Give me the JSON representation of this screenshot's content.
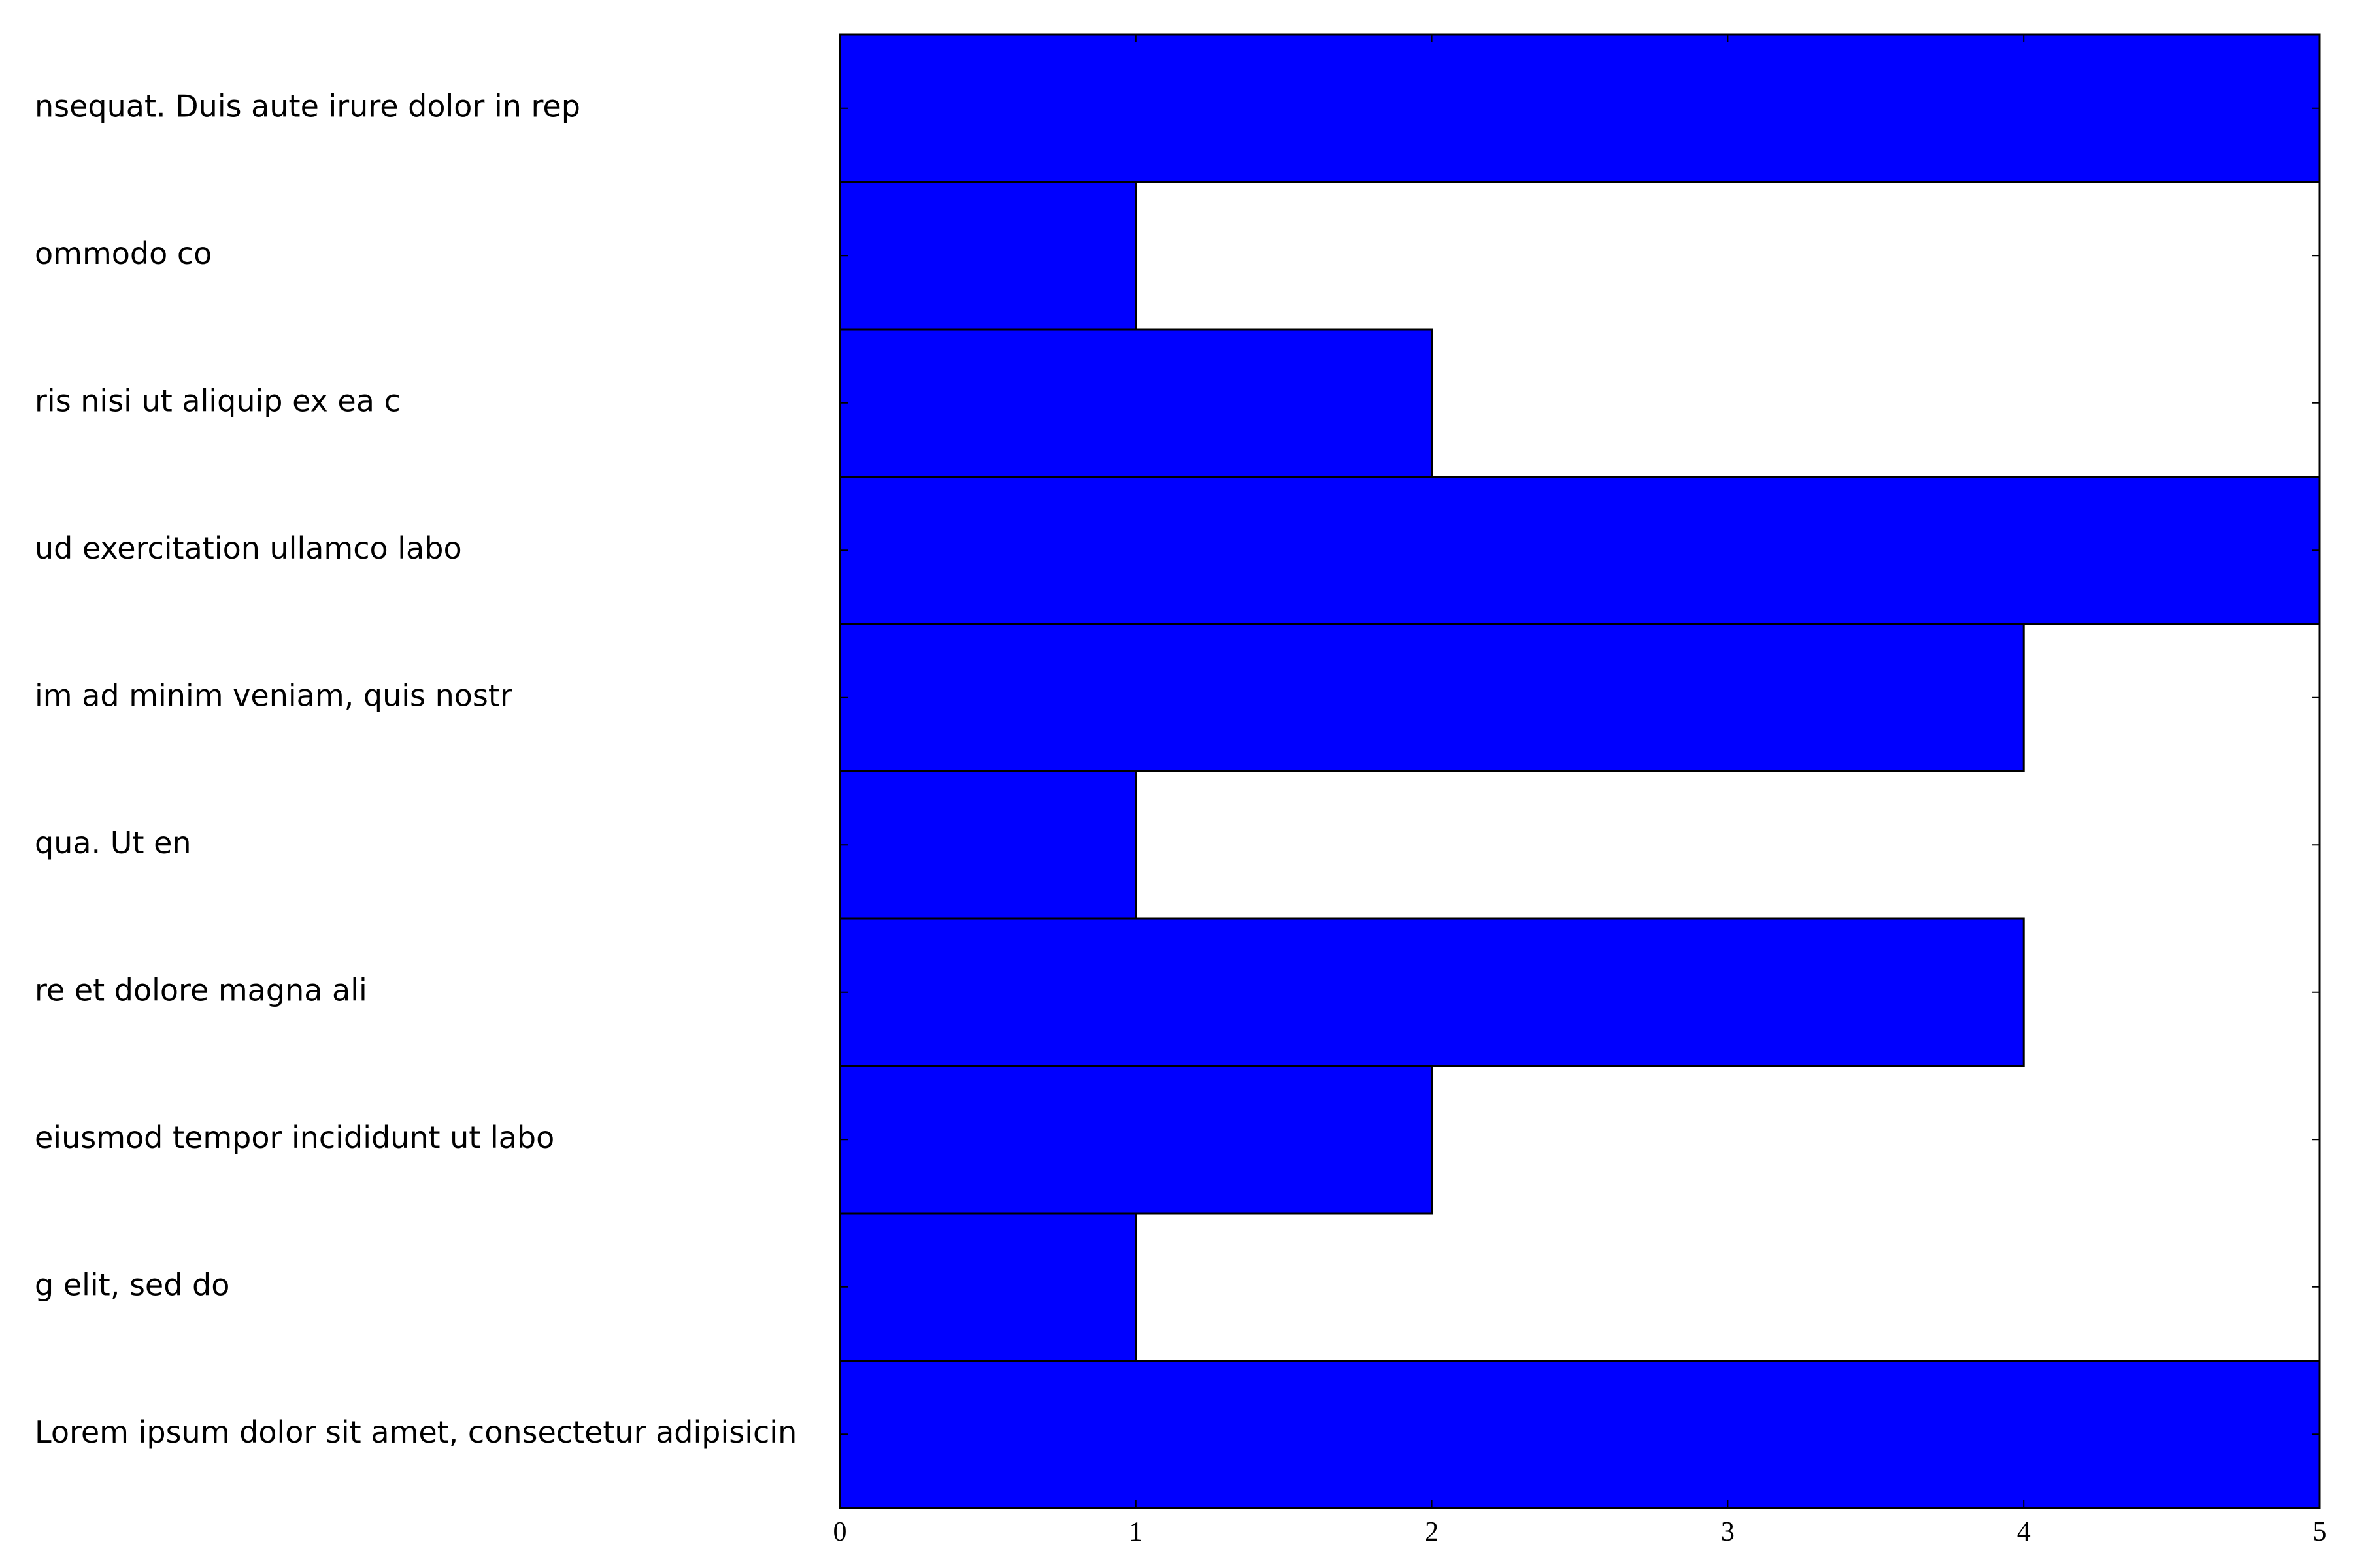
{
  "chart_data": {
    "type": "barh",
    "categories": [
      "Lorem ipsum dolor sit amet, consectetur adipisicin",
      "g elit, sed do",
      "eiusmod tempor incididunt ut labo",
      "re et dolore magna ali",
      "qua. Ut en",
      "im ad minim veniam, quis nostr",
      "ud exercitation ullamco labo",
      "ris nisi ut aliquip ex ea c",
      "ommodo co",
      "nsequat. Duis aute irure dolor in rep"
    ],
    "values": [
      5,
      1,
      2,
      4,
      1,
      4,
      5,
      2,
      1,
      5
    ],
    "color": "#0000ff",
    "xlim": [
      0,
      5
    ],
    "xticks": [
      0,
      1,
      2,
      3,
      4,
      5
    ]
  }
}
